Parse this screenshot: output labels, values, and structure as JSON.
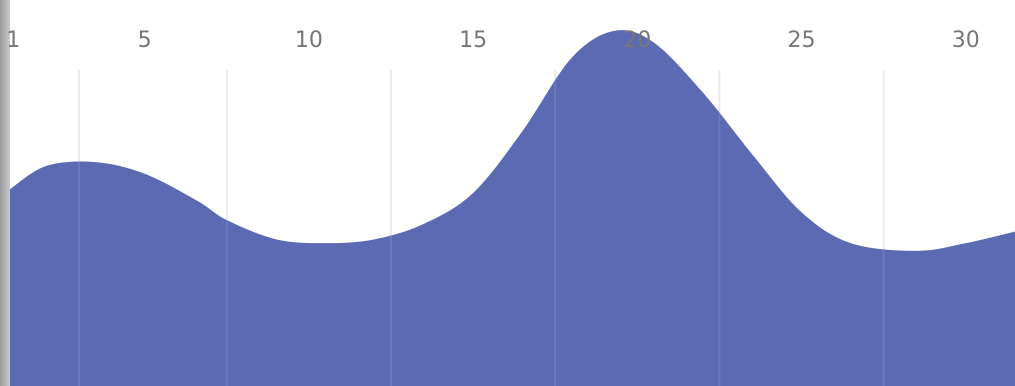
{
  "chart_data": {
    "type": "area",
    "x_ticks": [
      "1",
      "5",
      "10",
      "15",
      "20",
      "25",
      "30"
    ],
    "x_tick_values": [
      1,
      5,
      10,
      15,
      20,
      25,
      30
    ],
    "xlim": [
      0.9,
      31.5
    ],
    "ylim": [
      0,
      100
    ],
    "series": [
      {
        "x": [
          0.9,
          2,
          3.5,
          5,
          6.6,
          7.5,
          9,
          10.5,
          12,
          13.5,
          15,
          16.5,
          18,
          19.3,
          20.5,
          22,
          23.5,
          25,
          26.5,
          28.5,
          30,
          31.5
        ],
        "values": [
          51,
          57,
          58,
          55,
          48,
          43,
          38,
          37,
          38,
          42,
          50,
          66,
          85,
          92,
          89,
          76,
          60,
          45,
          37,
          35,
          37,
          40
        ],
        "color": "#5b6ab2"
      }
    ],
    "grid": true,
    "legend": "none"
  }
}
